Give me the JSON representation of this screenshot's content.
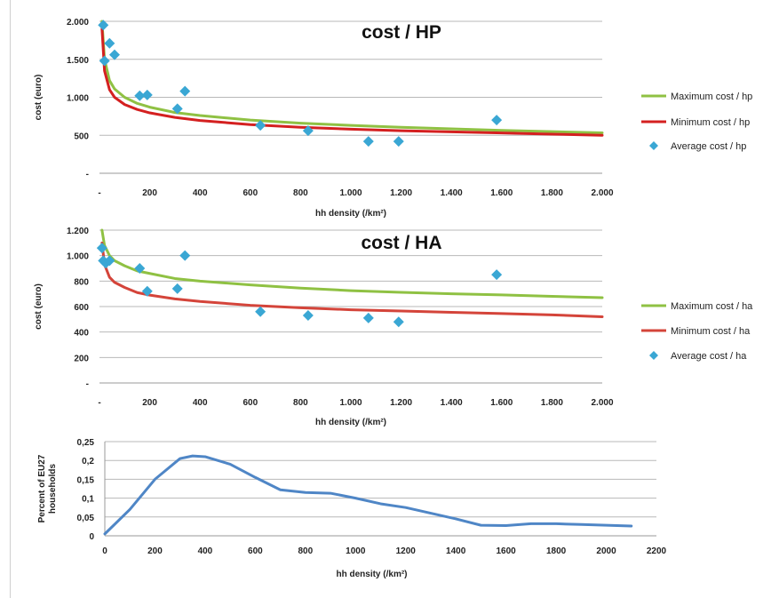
{
  "chart_data": [
    {
      "type": "line",
      "title": "cost / HP",
      "xlabel": "hh density (/km²)",
      "ylabel": "cost (euro)",
      "xlim": [
        0,
        2000
      ],
      "ylim": [
        0,
        2000
      ],
      "x_ticks": [
        "-",
        "200",
        "400",
        "600",
        "800",
        "1.000",
        "1.200",
        "1.400",
        "1.600",
        "1.800",
        "2.000"
      ],
      "y_ticks": [
        "-",
        "500",
        "1.000",
        "1.500",
        "2.000"
      ],
      "grid": true,
      "legend": "right",
      "series": [
        {
          "name": "Maximum cost / hp",
          "kind": "line",
          "color": "#8fc143",
          "x": [
            10,
            20,
            40,
            60,
            100,
            150,
            200,
            300,
            400,
            600,
            800,
            1000,
            1200,
            1400,
            1600,
            1800,
            2000
          ],
          "y": [
            2000,
            1500,
            1220,
            1110,
            1000,
            920,
            870,
            800,
            760,
            700,
            660,
            630,
            605,
            585,
            565,
            548,
            532
          ]
        },
        {
          "name": "Minimum cost / hp",
          "kind": "line",
          "color": "#d42020",
          "x": [
            10,
            20,
            40,
            60,
            100,
            150,
            200,
            300,
            400,
            600,
            800,
            1000,
            1200,
            1400,
            1600,
            1800,
            2000
          ],
          "y": [
            1900,
            1350,
            1100,
            1000,
            905,
            840,
            795,
            735,
            695,
            640,
            605,
            580,
            560,
            545,
            530,
            515,
            500
          ]
        },
        {
          "name": "Average cost / hp",
          "kind": "scatter",
          "color": "#3aa7d4",
          "x": [
            15,
            20,
            40,
            60,
            160,
            190,
            310,
            340,
            640,
            830,
            1070,
            1190,
            1580
          ],
          "y": [
            1950,
            1480,
            1710,
            1560,
            1020,
            1030,
            850,
            1080,
            630,
            560,
            420,
            420,
            700
          ]
        }
      ]
    },
    {
      "type": "line",
      "title": "cost / HA",
      "xlabel": "hh density (/km²)",
      "ylabel": "cost (euro)",
      "xlim": [
        0,
        2000
      ],
      "ylim": [
        0,
        1200
      ],
      "x_ticks": [
        "-",
        "200",
        "400",
        "600",
        "800",
        "1.000",
        "1.200",
        "1.400",
        "1.600",
        "1.800",
        "2.000"
      ],
      "y_ticks": [
        "-",
        "200",
        "400",
        "600",
        "800",
        "1.000",
        "1.200"
      ],
      "grid": true,
      "legend": "right",
      "series": [
        {
          "name": "Maximum cost / ha",
          "kind": "line",
          "color": "#8fc143",
          "x": [
            10,
            20,
            40,
            60,
            100,
            150,
            200,
            300,
            400,
            600,
            800,
            1000,
            1200,
            1400,
            1600,
            1800,
            2000
          ],
          "y": [
            1200,
            1080,
            1000,
            960,
            920,
            880,
            860,
            820,
            800,
            770,
            745,
            725,
            712,
            700,
            692,
            680,
            670
          ]
        },
        {
          "name": "Minimum cost / ha",
          "kind": "line",
          "color": "#d4443a",
          "x": [
            10,
            20,
            40,
            60,
            100,
            150,
            200,
            300,
            400,
            600,
            800,
            1000,
            1200,
            1400,
            1600,
            1800,
            2000
          ],
          "y": [
            1100,
            930,
            830,
            790,
            750,
            710,
            690,
            660,
            640,
            610,
            590,
            575,
            565,
            555,
            545,
            535,
            520
          ]
        },
        {
          "name": "Average cost / ha",
          "kind": "scatter",
          "color": "#3aa7d4",
          "x": [
            10,
            15,
            25,
            40,
            160,
            190,
            310,
            340,
            640,
            830,
            1070,
            1190,
            1580
          ],
          "y": [
            1060,
            960,
            940,
            960,
            900,
            720,
            740,
            1000,
            560,
            530,
            510,
            480,
            850
          ]
        }
      ]
    },
    {
      "type": "line",
      "title": "",
      "xlabel": "hh density (/km²)",
      "ylabel": "Percent of EU27 households",
      "xlim": [
        0,
        2200
      ],
      "ylim": [
        0,
        0.25
      ],
      "x_ticks": [
        "0",
        "200",
        "400",
        "600",
        "800",
        "1000",
        "1200",
        "1400",
        "1600",
        "1800",
        "2000",
        "2200"
      ],
      "y_ticks": [
        "0",
        "0,05",
        "0,1",
        "0,15",
        "0,2",
        "0,25"
      ],
      "grid": true,
      "series": [
        {
          "name": "",
          "kind": "line",
          "color": "#4f86c6",
          "x": [
            0,
            100,
            200,
            300,
            350,
            400,
            500,
            600,
            700,
            800,
            900,
            1000,
            1100,
            1200,
            1300,
            1400,
            1500,
            1600,
            1700,
            1800,
            1900,
            2000,
            2100
          ],
          "y": [
            0.005,
            0.07,
            0.15,
            0.205,
            0.212,
            0.21,
            0.19,
            0.155,
            0.122,
            0.115,
            0.113,
            0.1,
            0.085,
            0.075,
            0.06,
            0.045,
            0.028,
            0.027,
            0.032,
            0.032,
            0.03,
            0.028,
            0.026
          ]
        }
      ]
    }
  ]
}
